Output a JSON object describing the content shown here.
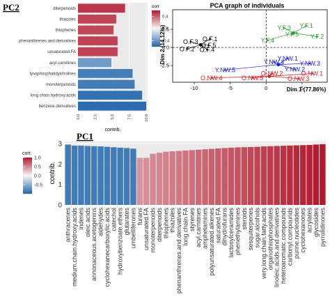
{
  "panels": {
    "pc2_label": "PC2",
    "pc1_label": "PC1"
  },
  "colors": {
    "high": "#b2182b",
    "mid": "#f7f7f7",
    "low": "#2166ac",
    "panel_bg": "#ebebeb",
    "grid": "#ffffff",
    "O_group": "#000000",
    "Y_group": "#2ca02c",
    "NW_blue": "#1a1aff",
    "NW_red": "#e31a1c"
  },
  "chart_data": [
    {
      "type": "bar",
      "orientation": "horizontal",
      "categories": [
        "diterpenoids",
        "thiazoles",
        "thiophenes",
        "phenanthrenes.and.derivatives",
        "unsaturated.FA",
        "acyl.carnitines",
        "lysophosphatidylcholines",
        "monoterpenoids",
        "long.chain.hydroxy.acids",
        "benzene.derivatives"
      ],
      "values": [
        6.9,
        5.6,
        5.2,
        5.8,
        5.8,
        4.9,
        8.0,
        8.3,
        9.4,
        10.0
      ],
      "signs": [
        1,
        1,
        1,
        1,
        1,
        -1,
        -1,
        -1,
        -1,
        -1
      ],
      "xlabel": "contrib.",
      "ylabel": "",
      "xticks": [
        "0.0",
        "2.5",
        "5.0",
        "7.5",
        "10.0"
      ],
      "xlim": [
        0,
        10.2
      ],
      "legend": {
        "title": "corr",
        "ticks": [
          "0.4",
          "0.0",
          "-0.4"
        ],
        "range": [
          -0.6,
          0.6
        ],
        "placement": "right"
      },
      "grid": true
    },
    {
      "type": "scatter",
      "title": "PCA graph of individuals",
      "xlabel": "Dim 1 (77.86%)",
      "ylabel": "Dim 2 (14.12%)",
      "xticks": [
        -10,
        -5,
        0,
        5
      ],
      "yticks": [
        "2.5",
        "0.0",
        "-2.5"
      ],
      "xlim": [
        -13,
        8.5
      ],
      "ylim": [
        -4.8,
        5.2
      ],
      "groups": [
        {
          "color_key": "O_group",
          "points": [
            {
              "label": "O.F.1",
              "x": -7.8,
              "y": 1.2
            },
            {
              "label": "O.F.3",
              "x": -10.5,
              "y": 0.8
            },
            {
              "label": "O.F.5",
              "x": -8.0,
              "y": 0.3
            },
            {
              "label": "O.F.2",
              "x": -11.0,
              "y": -0.2
            },
            {
              "label": "O.F.4",
              "x": -8.2,
              "y": -0.3
            }
          ]
        },
        {
          "color_key": "Y_group",
          "points": [
            {
              "label": "Y.F.3",
              "x": 2.5,
              "y": 2.7
            },
            {
              "label": "Y.F.1",
              "x": 5.6,
              "y": 3.0
            },
            {
              "label": "Y.F.4",
              "x": 0.2,
              "y": 1.0
            },
            {
              "label": "Y.F.5",
              "x": 3.6,
              "y": 1.8
            },
            {
              "label": "Y.F.2",
              "x": 7.1,
              "y": 1.5
            }
          ]
        },
        {
          "color_key": "NW_blue",
          "points": [
            {
              "label": "Y.NW.1",
              "x": 3.0,
              "y": -1.5
            },
            {
              "label": "Y.NW.4",
              "x": 1.1,
              "y": -2.0
            },
            {
              "label": "Y.NW.3",
              "x": 6.1,
              "y": -2.2
            },
            {
              "label": "Y.NW.5",
              "x": -5.7,
              "y": -3.1
            },
            {
              "label": "Y.NW.2",
              "x": 4.0,
              "y": -3.0
            }
          ]
        },
        {
          "color_key": "NW_red",
          "points": [
            {
              "label": "O.NW.1",
              "x": 6.4,
              "y": -3.6
            },
            {
              "label": "O.NW.2",
              "x": 0.8,
              "y": -3.6
            },
            {
              "label": "O.NW.4",
              "x": -7.6,
              "y": -4.2
            },
            {
              "label": "O.NW.5",
              "x": -1.9,
              "y": -4.2
            },
            {
              "label": "O.NW.3",
              "x": 4.5,
              "y": -4.3
            }
          ]
        }
      ],
      "grid": true
    },
    {
      "type": "bar",
      "orientation": "vertical",
      "categories": [
        "anthracenes",
        "medium.chain.hydroxy.acids",
        "indenes",
        "oleic.acids",
        "annonaceous.acetogenins",
        "aldehydes",
        "cyclohexanecarboxylic.acids",
        "catechol",
        "hydroxybenzoate.ethers",
        "glutarates",
        "umbelliferones",
        "furans",
        "unsaturated.FA",
        "monoterpenoids",
        "diterpenoids",
        "thiophenes",
        "thiazoles",
        "phenanthrenes.and.derivatives",
        "long.chain.FA",
        "styrenes",
        "acyl.carnitines",
        "amphetamines",
        "polyunsaturated.alkenes",
        "saturated.FA",
        "dihydrofurans",
        "lactosylceramides",
        "phenethylamines",
        "steroids",
        "sesquiterpenes",
        "sugar.alcohols",
        "very.long.chain.fatty.acids",
        "organothiophosphates",
        "linoleic.acids.and.derivatives",
        "heteroaromatic.compounds",
        "carbonyl.compounds",
        "purine.nucleotides",
        "cyclohexanones",
        "acrylates",
        "glycosides",
        "pyrrolidinones"
      ],
      "values": [
        2.95,
        2.9,
        2.9,
        2.88,
        2.87,
        2.86,
        2.84,
        2.82,
        2.8,
        2.78,
        2.75,
        2.3,
        2.3,
        2.5,
        2.55,
        2.6,
        2.62,
        2.64,
        2.66,
        2.68,
        2.7,
        2.72,
        2.74,
        2.76,
        2.78,
        2.8,
        2.81,
        2.82,
        2.83,
        2.84,
        2.86,
        2.87,
        2.88,
        2.89,
        2.9,
        2.91,
        2.92,
        2.93,
        2.95,
        2.97
      ],
      "signs": [
        -1,
        -1,
        -1,
        -1,
        -1,
        -1,
        -1,
        -1,
        -1,
        -1,
        -1,
        1,
        1,
        1,
        1,
        1,
        1,
        1,
        1,
        1,
        1,
        1,
        1,
        1,
        1,
        1,
        1,
        1,
        1,
        1,
        1,
        1,
        1,
        1,
        1,
        1,
        1,
        1,
        1,
        1
      ],
      "ylabel": "contrib.",
      "xlabel": "",
      "yticks": [
        "0",
        "1",
        "2",
        "3"
      ],
      "ylim": [
        0,
        3.1
      ],
      "legend": {
        "title": "corr.",
        "ticks": [
          "1.0",
          "0.5",
          "0.0",
          "-0.5"
        ],
        "range": [
          -1.0,
          1.0
        ],
        "placement": "left"
      },
      "grid": true
    }
  ]
}
